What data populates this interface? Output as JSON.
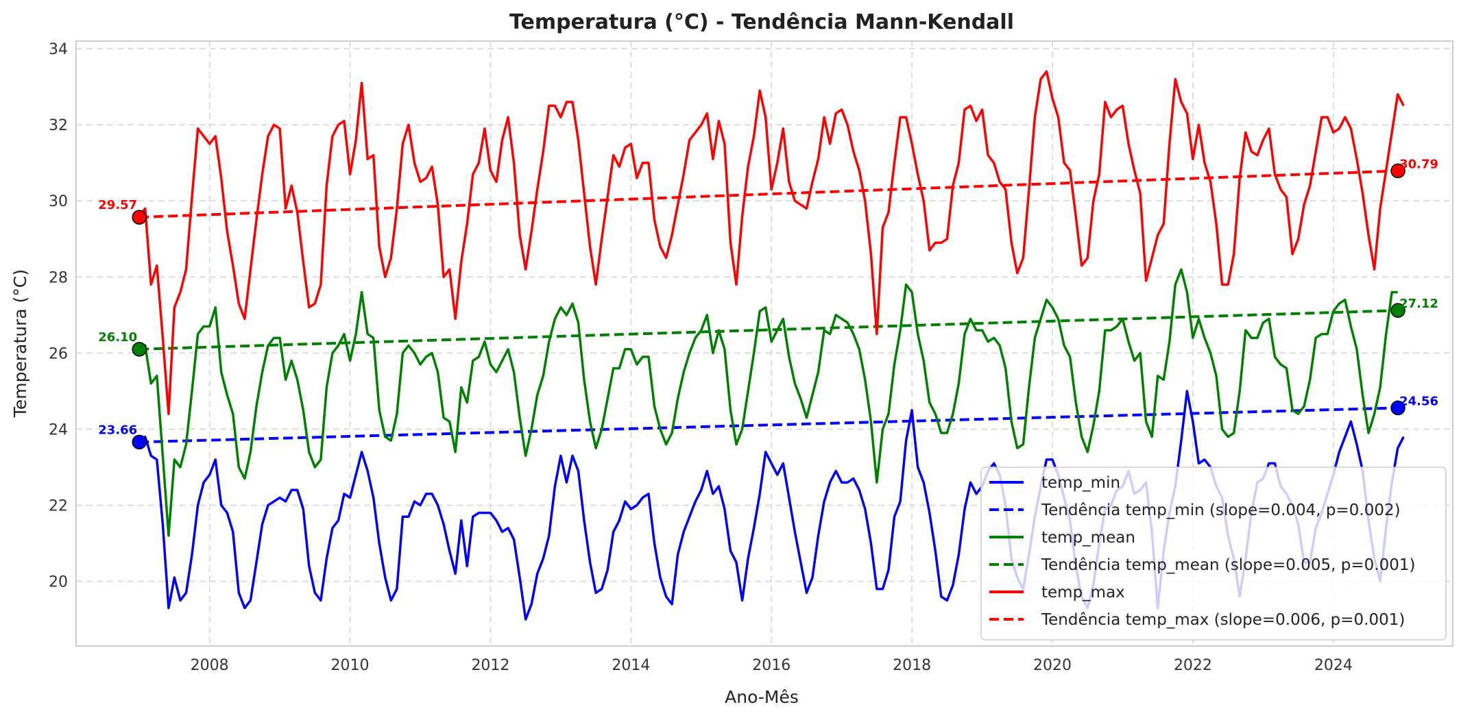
{
  "chart_data": {
    "type": "line",
    "title": "Temperatura (°C) - Tendência Mann-Kendall",
    "xlabel": "Ano-Mês",
    "ylabel": "Temperatura (°C)",
    "xlim": [
      2006.1,
      2025.7
    ],
    "ylim": [
      18.3,
      34.2
    ],
    "x_ticks": [
      2008,
      2010,
      2012,
      2014,
      2016,
      2018,
      2020,
      2022,
      2024
    ],
    "y_ticks": [
      20,
      22,
      24,
      26,
      28,
      30,
      32,
      34
    ],
    "grid": true,
    "legend_position": "lower-right",
    "x_start": 2007.0,
    "x_step_months": 1,
    "series": [
      {
        "name": "temp_min",
        "color": "#0000ff",
        "style": "solid",
        "values": [
          23.7,
          23.8,
          23.3,
          23.2,
          21.5,
          19.3,
          20.1,
          19.5,
          19.7,
          20.7,
          22.0,
          22.6,
          22.8,
          23.2,
          22.0,
          21.8,
          21.3,
          19.7,
          19.3,
          19.5,
          20.5,
          21.5,
          22.0,
          22.1,
          22.2,
          22.1,
          22.4,
          22.4,
          21.9,
          20.4,
          19.7,
          19.5,
          20.6,
          21.4,
          21.6,
          22.3,
          22.2,
          22.8,
          23.4,
          22.9,
          22.2,
          21.0,
          20.1,
          19.5,
          19.8,
          21.7,
          21.7,
          22.1,
          22.0,
          22.3,
          22.3,
          22.0,
          21.5,
          20.8,
          20.2,
          21.6,
          20.4,
          21.7,
          21.8,
          21.8,
          21.8,
          21.6,
          21.3,
          21.4,
          21.1,
          20.1,
          19.0,
          19.4,
          20.2,
          20.6,
          21.2,
          22.5,
          23.3,
          22.6,
          23.3,
          22.9,
          21.6,
          20.5,
          19.7,
          19.8,
          20.3,
          21.3,
          21.6,
          22.1,
          21.9,
          22.0,
          22.2,
          22.3,
          21.0,
          20.1,
          19.6,
          19.4,
          20.7,
          21.3,
          21.7,
          22.1,
          22.4,
          22.9,
          22.3,
          22.5,
          21.9,
          20.8,
          20.5,
          19.5,
          20.6,
          21.4,
          22.3,
          23.4,
          23.1,
          22.8,
          23.1,
          22.2,
          21.3,
          20.5,
          19.7,
          20.1,
          21.2,
          22.1,
          22.6,
          22.9,
          22.6,
          22.6,
          22.7,
          22.4,
          21.9,
          21.0,
          19.8,
          19.8,
          20.3,
          21.7,
          22.1,
          23.7,
          24.5,
          23.0,
          22.6,
          21.8,
          20.8,
          19.6,
          19.5,
          19.9,
          20.7,
          21.9,
          22.6,
          22.3,
          22.5,
          22.9,
          23.1,
          22.8,
          22.0,
          20.6,
          20.1,
          19.8,
          20.7,
          21.7,
          22.5,
          23.2,
          23.2,
          22.8,
          22.2,
          21.6,
          20.4,
          19.6,
          19.3,
          19.9,
          21.0,
          21.9,
          22.0,
          22.4,
          22.5,
          22.9,
          22.3,
          22.4,
          22.6,
          21.3,
          19.3,
          20.8,
          21.8,
          22.5,
          23.7,
          25.0,
          24.2,
          23.1,
          23.2,
          23.0,
          22.5,
          22.2,
          21.2,
          20.6,
          19.6,
          20.6,
          21.8,
          22.6,
          22.7,
          23.1,
          23.1,
          22.5,
          22.3,
          22.0,
          21.5,
          20.5,
          20.5,
          21.4,
          21.8,
          22.3,
          22.8,
          23.4,
          23.8,
          24.2,
          23.6,
          22.9,
          21.6,
          20.6,
          20.0,
          21.4,
          22.6,
          23.5,
          23.8
        ]
      },
      {
        "name": "Tendência temp_min (slope=0.004, p=0.002)",
        "color": "#0000ff",
        "style": "dashed",
        "x": [
          2007.0,
          2024.92
        ],
        "values": [
          23.66,
          24.56
        ]
      },
      {
        "name": "temp_mean",
        "color": "#008000",
        "style": "solid",
        "values": [
          26.1,
          26.2,
          25.2,
          25.4,
          23.3,
          21.2,
          23.2,
          23.0,
          23.6,
          25.0,
          26.5,
          26.7,
          26.7,
          27.2,
          25.5,
          24.9,
          24.4,
          23.0,
          22.7,
          23.4,
          24.6,
          25.5,
          26.2,
          26.4,
          26.4,
          25.3,
          25.8,
          25.3,
          24.5,
          23.4,
          23.0,
          23.2,
          25.1,
          26.0,
          26.2,
          26.5,
          25.8,
          26.5,
          27.6,
          26.5,
          26.4,
          24.5,
          23.8,
          23.7,
          24.4,
          26.0,
          26.2,
          26.0,
          25.7,
          25.9,
          26.0,
          25.5,
          24.3,
          24.2,
          23.4,
          25.1,
          24.7,
          25.8,
          25.9,
          26.3,
          25.7,
          25.5,
          25.8,
          26.1,
          25.5,
          24.3,
          23.3,
          24.0,
          24.9,
          25.4,
          26.3,
          26.9,
          27.2,
          27.0,
          27.3,
          26.8,
          25.3,
          24.2,
          23.5,
          24.0,
          24.8,
          25.6,
          25.6,
          26.1,
          26.1,
          25.7,
          25.9,
          25.9,
          24.6,
          24.0,
          23.6,
          23.9,
          24.8,
          25.5,
          26.0,
          26.4,
          26.6,
          27.0,
          26.0,
          26.6,
          26.1,
          24.5,
          23.6,
          24.0,
          25.0,
          26.0,
          27.1,
          27.2,
          26.3,
          26.6,
          26.9,
          25.9,
          25.2,
          24.8,
          24.3,
          24.9,
          25.5,
          26.6,
          26.5,
          27.0,
          26.9,
          26.8,
          26.5,
          26.1,
          25.3,
          24.2,
          22.6,
          24.0,
          24.4,
          25.7,
          26.6,
          27.8,
          27.6,
          26.5,
          25.8,
          24.7,
          24.4,
          23.9,
          23.9,
          24.4,
          25.2,
          26.5,
          26.9,
          26.6,
          26.6,
          26.3,
          26.4,
          26.2,
          25.6,
          24.2,
          23.5,
          23.6,
          25.1,
          26.4,
          26.9,
          27.4,
          27.2,
          26.9,
          26.2,
          25.9,
          24.7,
          23.8,
          23.4,
          24.1,
          25.0,
          26.6,
          26.6,
          26.7,
          26.9,
          26.3,
          25.8,
          26.0,
          24.2,
          23.8,
          25.4,
          25.3,
          26.3,
          27.8,
          28.2,
          27.6,
          26.4,
          26.9,
          26.4,
          26.0,
          25.4,
          24.0,
          23.8,
          23.9,
          25.0,
          26.6,
          26.4,
          26.4,
          26.8,
          26.9,
          25.9,
          25.7,
          25.6,
          24.5,
          24.4,
          24.6,
          25.3,
          26.4,
          26.5,
          26.5,
          27.1,
          27.3,
          27.4,
          26.7,
          26.1,
          24.9,
          23.9,
          24.4,
          25.1,
          26.5,
          27.6,
          27.6
        ]
      },
      {
        "name": "Tendência temp_mean (slope=0.005, p=0.001)",
        "color": "#008000",
        "style": "dashed",
        "x": [
          2007.0,
          2024.92
        ],
        "values": [
          26.1,
          27.12
        ]
      },
      {
        "name": "temp_max",
        "color": "#ff0000",
        "style": "solid",
        "values": [
          29.6,
          29.8,
          27.8,
          28.3,
          26.4,
          24.4,
          27.2,
          27.6,
          28.2,
          30.1,
          31.9,
          31.7,
          31.5,
          31.7,
          30.6,
          29.2,
          28.3,
          27.3,
          26.9,
          28.2,
          29.5,
          30.7,
          31.7,
          32.0,
          31.9,
          29.8,
          30.4,
          29.7,
          28.4,
          27.2,
          27.3,
          27.8,
          30.4,
          31.7,
          32.0,
          32.1,
          30.7,
          31.6,
          33.1,
          31.1,
          31.2,
          28.8,
          28.0,
          28.5,
          29.8,
          31.5,
          32.0,
          31.0,
          30.5,
          30.6,
          30.9,
          29.9,
          28.0,
          28.2,
          26.9,
          28.4,
          29.4,
          30.7,
          31.0,
          31.9,
          30.8,
          30.5,
          31.6,
          32.2,
          31.0,
          29.1,
          28.2,
          29.2,
          30.3,
          31.3,
          32.5,
          32.5,
          32.2,
          32.6,
          32.6,
          31.6,
          30.2,
          28.8,
          27.8,
          29.0,
          30.1,
          31.2,
          30.9,
          31.4,
          31.5,
          30.6,
          31.0,
          31.0,
          29.5,
          28.8,
          28.5,
          29.1,
          29.9,
          30.7,
          31.6,
          31.8,
          32.0,
          32.3,
          31.1,
          32.1,
          31.5,
          28.9,
          27.8,
          29.6,
          30.9,
          31.7,
          32.9,
          32.2,
          30.3,
          31.0,
          31.9,
          30.5,
          30.0,
          29.9,
          29.8,
          30.5,
          31.1,
          32.2,
          31.5,
          32.3,
          32.4,
          32.0,
          31.3,
          30.8,
          30.0,
          28.6,
          26.5,
          29.3,
          29.7,
          31.0,
          32.2,
          32.2,
          31.5,
          30.7,
          30.0,
          28.7,
          28.9,
          28.9,
          29.0,
          30.4,
          31.0,
          32.4,
          32.5,
          32.1,
          32.4,
          31.2,
          31.0,
          30.5,
          30.3,
          28.9,
          28.1,
          28.5,
          30.3,
          32.2,
          33.2,
          33.4,
          32.7,
          32.2,
          31.0,
          30.8,
          29.6,
          28.3,
          28.5,
          30.0,
          30.7,
          32.6,
          32.2,
          32.4,
          32.5,
          31.5,
          30.8,
          30.2,
          27.9,
          28.5,
          29.1,
          29.4,
          31.5,
          33.2,
          32.6,
          32.3,
          31.1,
          32.0,
          31.0,
          30.5,
          29.4,
          27.8,
          27.8,
          28.6,
          30.6,
          31.8,
          31.3,
          31.2,
          31.6,
          31.9,
          30.7,
          30.3,
          30.1,
          28.6,
          29.0,
          29.9,
          30.4,
          31.3,
          32.2,
          32.2,
          31.8,
          31.9,
          32.2,
          31.9,
          31.1,
          30.2,
          29.1,
          28.2,
          29.8,
          30.8,
          31.8,
          32.8,
          32.5
        ]
      },
      {
        "name": "Tendência temp_max (slope=0.006, p=0.001)",
        "color": "#ff0000",
        "style": "dashed",
        "x": [
          2007.0,
          2024.92
        ],
        "values": [
          29.57,
          30.79
        ]
      }
    ],
    "endpoint_labels": [
      {
        "series": "temp_min",
        "start": "23.66",
        "end": "24.56",
        "color": "#0000ff"
      },
      {
        "series": "temp_mean",
        "start": "26.10",
        "end": "27.12",
        "color": "#008000"
      },
      {
        "series": "temp_max",
        "start": "29.57",
        "end": "30.79",
        "color": "#ff0000"
      }
    ]
  }
}
